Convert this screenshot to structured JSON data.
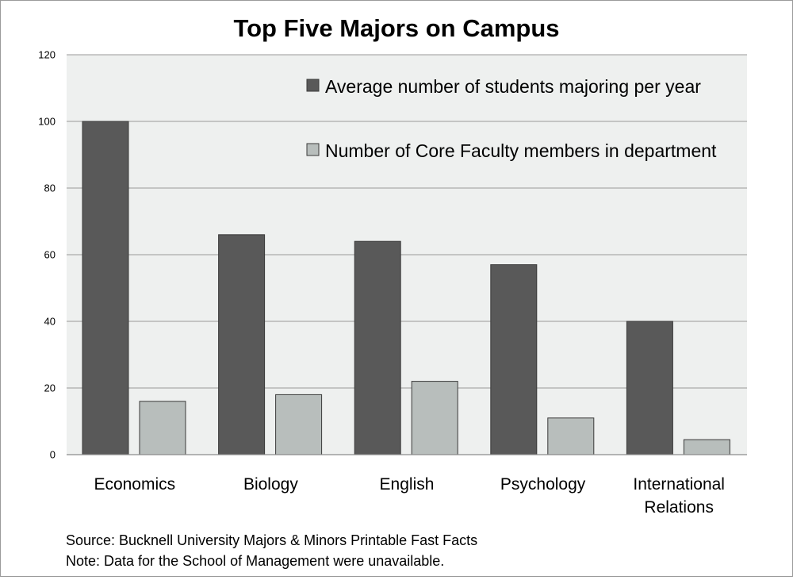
{
  "chart_data": {
    "type": "bar",
    "title": "Top Five Majors on Campus",
    "xlabel": "",
    "ylabel": "",
    "categories": [
      [
        "Economics"
      ],
      [
        "Biology"
      ],
      [
        "English"
      ],
      [
        "Psychology"
      ],
      [
        "International",
        "Relations"
      ]
    ],
    "series": [
      {
        "name": "Average number of students majoring per year",
        "color": "#595959",
        "values": [
          100,
          66,
          64,
          57,
          40
        ]
      },
      {
        "name": "Number of Core Faculty members in department",
        "color": "#b8bebc",
        "values": [
          16,
          18,
          22,
          11,
          4.5
        ]
      }
    ],
    "ylim": [
      0,
      120
    ],
    "yticks": [
      "0",
      "20",
      "40",
      "60",
      "80",
      "100",
      "120"
    ],
    "ytick_values": [
      0,
      20,
      40,
      60,
      80,
      100,
      120
    ],
    "grid": true,
    "legend_position": "top-right",
    "plot_background": "#eef0ef"
  },
  "footnotes": {
    "source": "Source: Bucknell University Majors & Minors Printable Fast Facts",
    "note": "Note: Data for the School of Management were unavailable."
  }
}
